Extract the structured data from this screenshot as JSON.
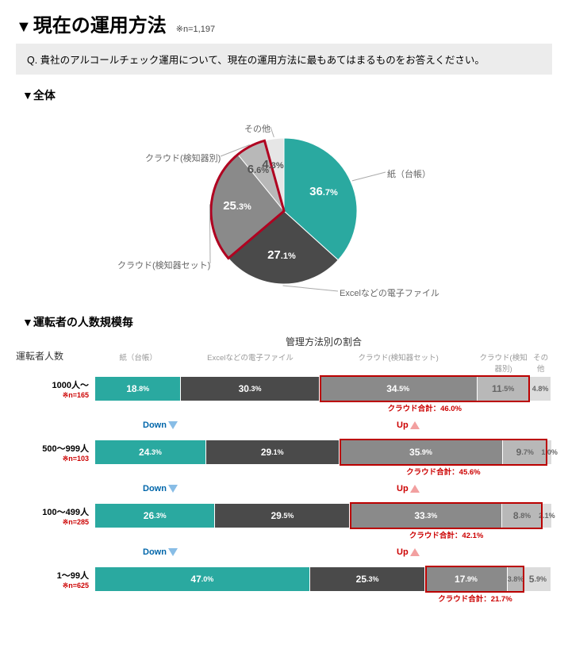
{
  "title": "現在の運用方法",
  "title_caret": "▼",
  "sample_n": "※n=1,197",
  "question": "Q.  貴社のアルコールチェック運用について、現在の運用方法に最もあてはまるものをお答えください。",
  "sub_overall": "▼全体",
  "sub_bysize": "▼運転者の人数規模毎",
  "pie": {
    "type": "pie",
    "radius": 92,
    "start_angle": -90,
    "background_color": "#ffffff",
    "outline_color": "#b00020",
    "outline_width": 3,
    "segments": [
      {
        "label": "紙（台帳）",
        "value": 36.7,
        "color": "#2aa9a0",
        "cloud": false
      },
      {
        "label": "Excelなどの電子ファイル",
        "value": 27.1,
        "color": "#4a4a4a",
        "cloud": false
      },
      {
        "label": "クラウド(検知器セット)",
        "value": 25.3,
        "color": "#8a8a8a",
        "cloud": true
      },
      {
        "label": "クラウド(検知器別)",
        "value": 6.6,
        "color": "#b8b8b8",
        "cloud": true
      },
      {
        "label": "その他",
        "value": 4.3,
        "color": "#e6e6e6",
        "cloud": false
      }
    ]
  },
  "bars": {
    "type": "stacked-bar",
    "left_header": "運転者人数",
    "right_header": "管理方法別の割合",
    "columns": [
      {
        "label": "紙（台帳）",
        "color": "#2aa9a0"
      },
      {
        "label": "Excelなどの電子ファイル",
        "color": "#4a4a4a"
      },
      {
        "label": "クラウド(検知器セット)",
        "color": "#8a8a8a"
      },
      {
        "label": "クラウド(検知器別)",
        "color": "#b8b8b8"
      },
      {
        "label": "その他",
        "color": "#dcdcdc"
      }
    ],
    "rows": [
      {
        "range": "1000人～",
        "n": "※n=165",
        "values": [
          18.8,
          30.3,
          34.5,
          11.5,
          4.8
        ],
        "cloud_total": "クラウド合計：46.0%"
      },
      {
        "range": "500～999人",
        "n": "※n=103",
        "values": [
          24.3,
          29.1,
          35.9,
          9.7,
          1.0
        ],
        "cloud_total": "クラウド合計：45.6%"
      },
      {
        "range": "100～499人",
        "n": "※n=285",
        "values": [
          26.3,
          29.5,
          33.3,
          8.8,
          2.1
        ],
        "cloud_total": "クラウド合計：42.1%"
      },
      {
        "range": "1～99人",
        "n": "※n=625",
        "values": [
          47.0,
          25.3,
          17.9,
          3.8,
          5.9
        ],
        "cloud_total": "クラウド合計：21.7%"
      }
    ],
    "down_label": "Down",
    "up_label": "Up",
    "down_color": "#0066aa",
    "up_color": "#cc0000",
    "seg_text_colors": [
      "#ffffff",
      "#ffffff",
      "#ffffff",
      "#666666",
      "#666666"
    ]
  }
}
